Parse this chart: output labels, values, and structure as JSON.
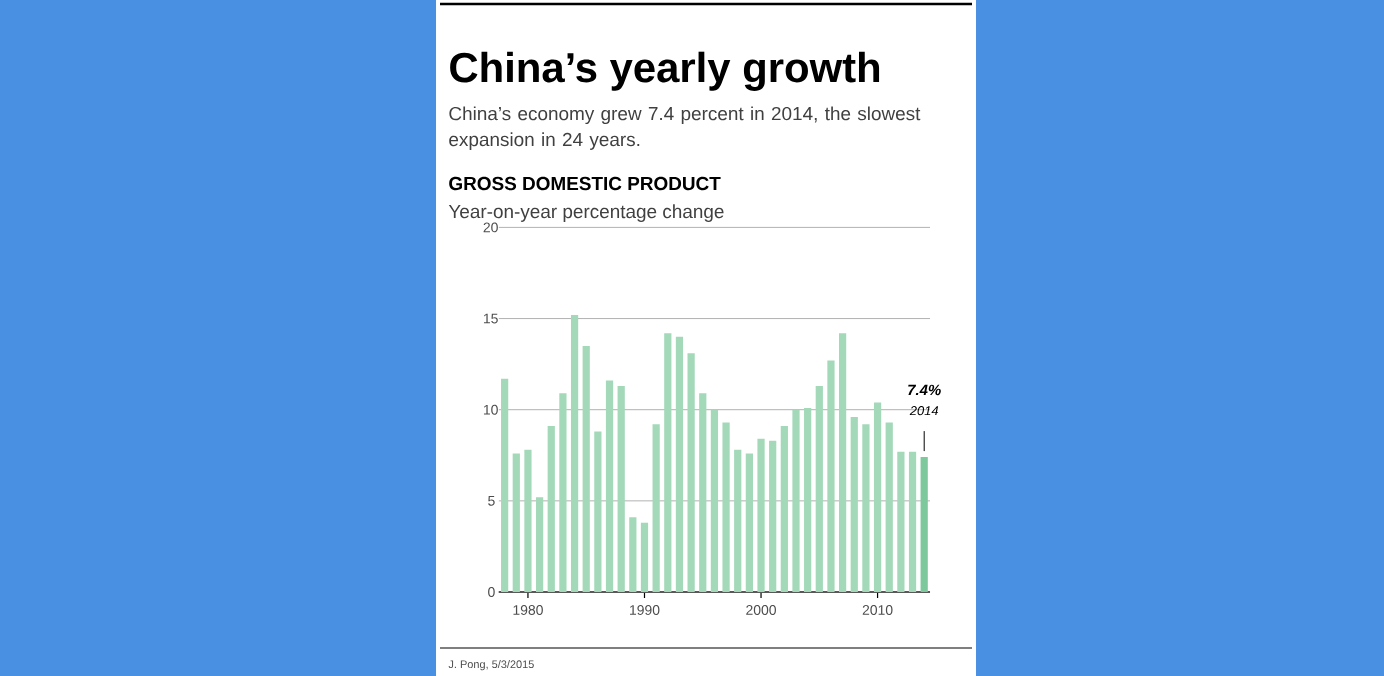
{
  "chart_data": {
    "type": "bar",
    "title": "China’s yearly growth",
    "subtitle": "China’s economy grew 7.4 percent in 2014, the slowest expansion in 24 years.",
    "ylabel": "Year-on-year percentage change",
    "x": [
      1978,
      1979,
      1980,
      1981,
      1982,
      1983,
      1984,
      1985,
      1986,
      1987,
      1988,
      1989,
      1990,
      1991,
      1992,
      1993,
      1994,
      1995,
      1996,
      1997,
      1998,
      1999,
      2000,
      2001,
      2002,
      2003,
      2004,
      2005,
      2006,
      2007,
      2008,
      2009,
      2010,
      2011,
      2012,
      2013,
      2014
    ],
    "values": [
      11.7,
      7.6,
      7.8,
      5.2,
      9.1,
      10.9,
      15.2,
      13.5,
      8.8,
      11.6,
      11.3,
      4.1,
      3.8,
      9.2,
      14.2,
      14.0,
      13.1,
      10.9,
      10.0,
      9.3,
      7.8,
      7.6,
      8.4,
      8.3,
      9.1,
      10.0,
      10.1,
      11.3,
      12.7,
      14.2,
      9.6,
      9.2,
      10.4,
      9.3,
      7.7,
      7.7,
      7.4
    ],
    "colors": [
      "#a3d9b9",
      "#a3d9b9",
      "#a3d9b9",
      "#a3d9b9",
      "#a3d9b9",
      "#a3d9b9",
      "#a3d9b9",
      "#a3d9b9",
      "#a3d9b9",
      "#a3d9b9",
      "#a3d9b9",
      "#a3d9b9",
      "#a3d9b9",
      "#a3d9b9",
      "#a3d9b9",
      "#a3d9b9",
      "#a3d9b9",
      "#a3d9b9",
      "#a3d9b9",
      "#a3d9b9",
      "#a3d9b9",
      "#a3d9b9",
      "#a3d9b9",
      "#a3d9b9",
      "#a3d9b9",
      "#a3d9b9",
      "#a3d9b9",
      "#a3d9b9",
      "#a3d9b9",
      "#a3d9b9",
      "#a3d9b9",
      "#a3d9b9",
      "#a3d9b9",
      "#a3d9b9",
      "#a3d9b9",
      "#a3d9b9",
      "#7ec89e"
    ],
    "xlim": [
      1977.5,
      2014.5
    ],
    "xticks": [
      1980,
      1990,
      2000,
      2010
    ],
    "ylim": [
      0,
      20
    ],
    "yticks": [
      0,
      5,
      10,
      15,
      20
    ],
    "grid": "y",
    "annotations": [
      "GROSS DOMESTIC PRODUCT",
      "J. Pong, 5/3/2015",
      "7.4%",
      {
        "text": "2014",
        "x": 2014,
        "y": 7.4
      }
    ]
  }
}
